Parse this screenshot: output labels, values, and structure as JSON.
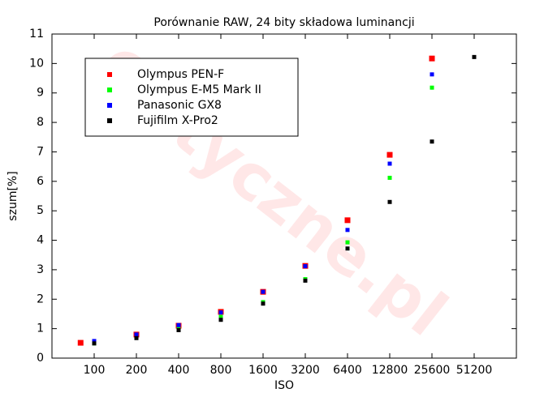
{
  "chart_data": {
    "type": "scatter",
    "title": "Porównanie RAW, 24 bity składowa luminancji",
    "x_label": "ISO",
    "y_label": "szum[%]",
    "watermark": "Optyczne.pl",
    "xscale": "log",
    "xlim": [
      50,
      102400
    ],
    "xticks": [
      100,
      200,
      400,
      800,
      1600,
      3200,
      6400,
      12800,
      25600,
      51200
    ],
    "ylim": [
      0,
      11
    ],
    "yticks": [
      0,
      1,
      2,
      3,
      4,
      5,
      6,
      7,
      8,
      9,
      10,
      11
    ],
    "grid": false,
    "legend": "upper left",
    "series": [
      {
        "name": "Olympus PEN-F",
        "color": "#ff0000",
        "x": [
          80,
          200,
          400,
          800,
          1600,
          3200,
          6400,
          12800,
          25600
        ],
        "values": [
          0.52,
          0.8,
          1.1,
          1.57,
          2.25,
          3.13,
          4.68,
          6.9,
          10.17
        ]
      },
      {
        "name": "Olympus E-M5 Mark II",
        "color": "#00ff00",
        "x": [
          100,
          200,
          400,
          800,
          1600,
          3200,
          6400,
          12800,
          25600
        ],
        "values": [
          0.5,
          0.72,
          1.05,
          1.4,
          1.9,
          2.68,
          3.93,
          6.12,
          9.18
        ]
      },
      {
        "name": "Panasonic GX8",
        "color": "#0000ff",
        "x": [
          100,
          200,
          400,
          800,
          1600,
          3200,
          6400,
          12800,
          25600
        ],
        "values": [
          0.58,
          0.8,
          1.12,
          1.55,
          2.25,
          3.12,
          4.35,
          6.6,
          9.63
        ]
      },
      {
        "name": "Fujifilm X-Pro2",
        "color": "#000000",
        "x": [
          100,
          200,
          400,
          800,
          1600,
          3200,
          6400,
          12800,
          25600,
          51200
        ],
        "values": [
          0.5,
          0.68,
          0.95,
          1.3,
          1.85,
          2.63,
          3.72,
          5.3,
          7.35,
          10.22
        ]
      }
    ]
  }
}
